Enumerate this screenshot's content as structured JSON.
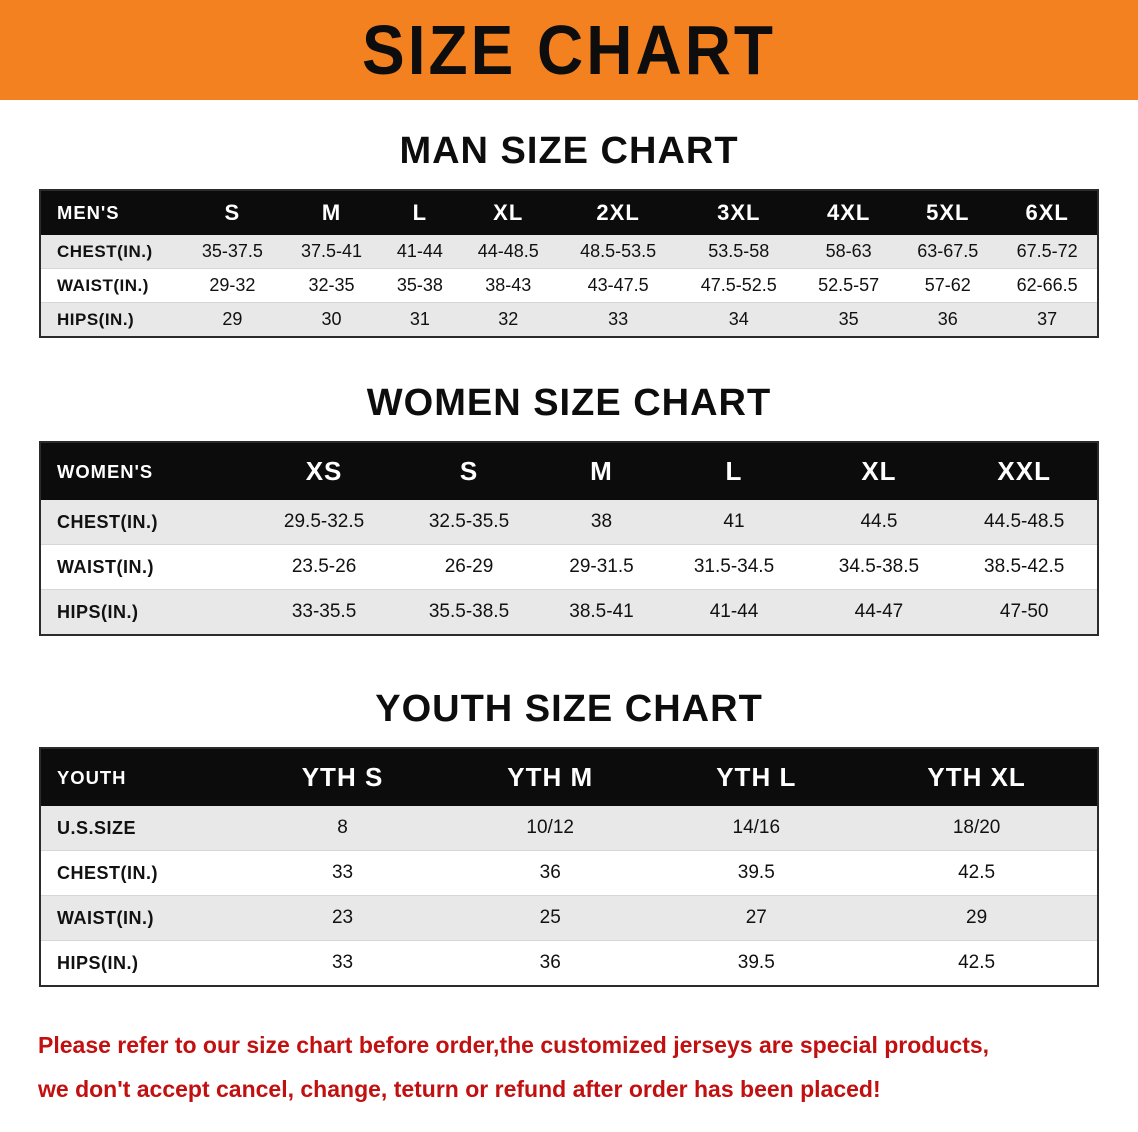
{
  "banner": {
    "title": "SIZE CHART"
  },
  "colors": {
    "banner_bg": "#f48120",
    "table_header_bg": "#0c0c0c",
    "row_alt_bg": "#e8e8e8",
    "note_color": "#c21010"
  },
  "chart_data": [
    {
      "type": "table",
      "title": "MAN SIZE CHART",
      "header_label": "MEN'S",
      "columns": [
        "S",
        "M",
        "L",
        "XL",
        "2XL",
        "3XL",
        "4XL",
        "5XL",
        "6XL"
      ],
      "rows": [
        {
          "label": "CHEST(IN.)",
          "values": [
            "35-37.5",
            "37.5-41",
            "41-44",
            "44-48.5",
            "48.5-53.5",
            "53.5-58",
            "58-63",
            "63-67.5",
            "67.5-72"
          ]
        },
        {
          "label": "WAIST(IN.)",
          "values": [
            "29-32",
            "32-35",
            "35-38",
            "38-43",
            "43-47.5",
            "47.5-52.5",
            "52.5-57",
            "57-62",
            "62-66.5"
          ]
        },
        {
          "label": "HIPS(IN.)",
          "values": [
            "29",
            "30",
            "31",
            "32",
            "33",
            "34",
            "35",
            "36",
            "37"
          ]
        }
      ]
    },
    {
      "type": "table",
      "title": "WOMEN SIZE CHART",
      "header_label": "WOMEN'S",
      "columns": [
        "XS",
        "S",
        "M",
        "L",
        "XL",
        "XXL"
      ],
      "rows": [
        {
          "label": "CHEST(IN.)",
          "values": [
            "29.5-32.5",
            "32.5-35.5",
            "38",
            "41",
            "44.5",
            "44.5-48.5"
          ]
        },
        {
          "label": "WAIST(IN.)",
          "values": [
            "23.5-26",
            "26-29",
            "29-31.5",
            "31.5-34.5",
            "34.5-38.5",
            "38.5-42.5"
          ]
        },
        {
          "label": "HIPS(IN.)",
          "values": [
            "33-35.5",
            "35.5-38.5",
            "38.5-41",
            "41-44",
            "44-47",
            "47-50"
          ]
        }
      ]
    },
    {
      "type": "table",
      "title": "YOUTH SIZE CHART",
      "header_label": "YOUTH",
      "columns": [
        "YTH S",
        "YTH M",
        "YTH L",
        "YTH XL"
      ],
      "rows": [
        {
          "label": "U.S.SIZE",
          "values": [
            "8",
            "10/12",
            "14/16",
            "18/20"
          ]
        },
        {
          "label": "CHEST(IN.)",
          "values": [
            "33",
            "36",
            "39.5",
            "42.5"
          ]
        },
        {
          "label": "WAIST(IN.)",
          "values": [
            "23",
            "25",
            "27",
            "29"
          ]
        },
        {
          "label": "HIPS(IN.)",
          "values": [
            "33",
            "36",
            "39.5",
            "42.5"
          ]
        }
      ]
    }
  ],
  "note": {
    "line1": "Please refer to our size chart before order,the customized jerseys are special products,",
    "line2": "we don't accept cancel, change, teturn or refund after order has been placed!"
  }
}
